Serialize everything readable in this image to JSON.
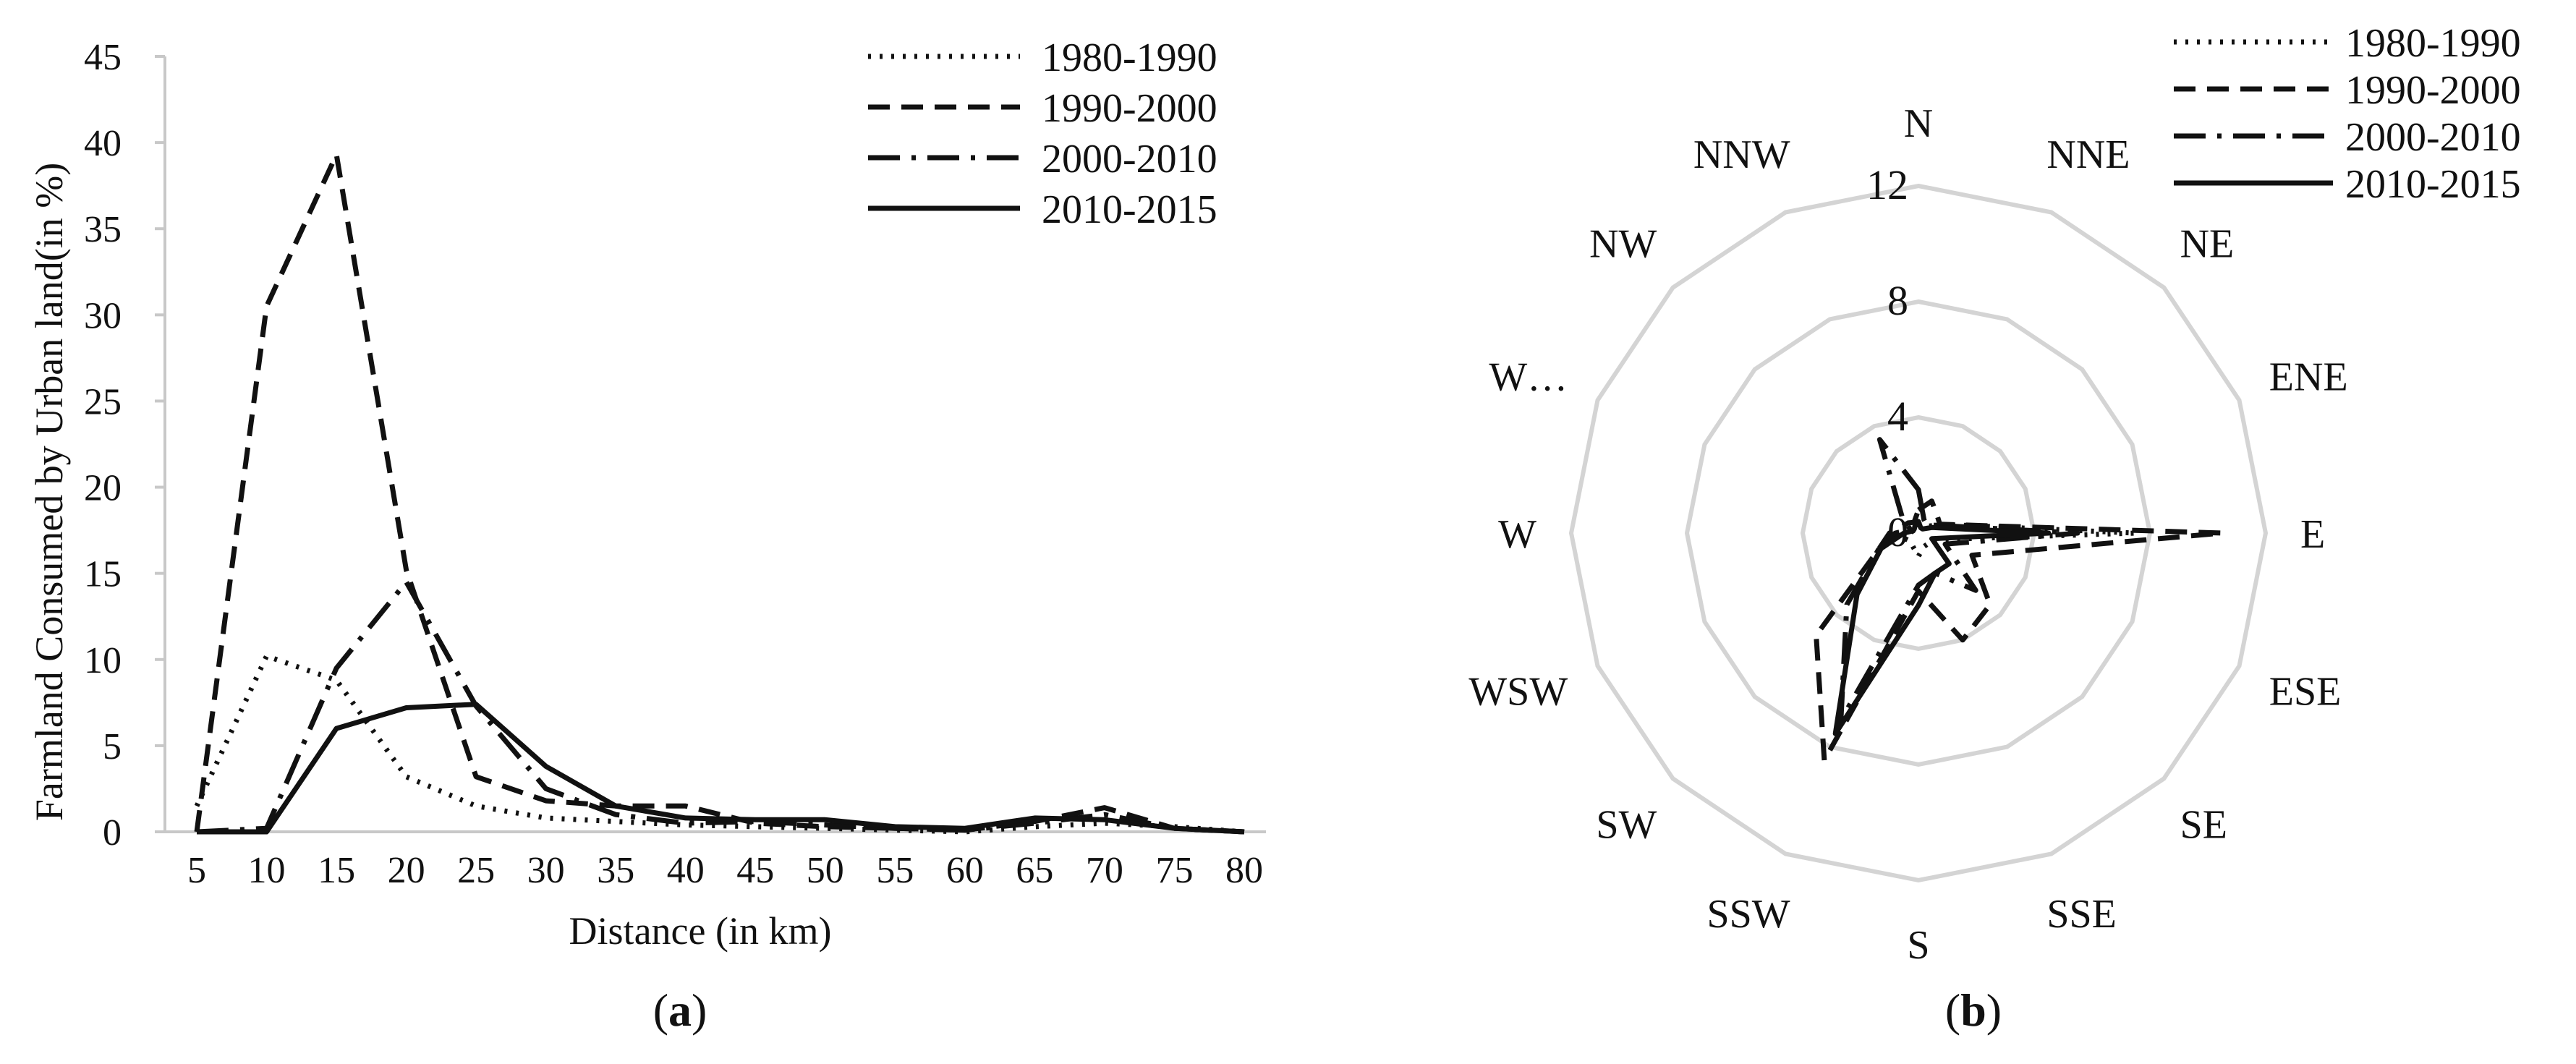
{
  "chart_data": [
    {
      "type": "line",
      "panel_label": "a",
      "xlabel": "Distance (in km)",
      "ylabel": "Farmland Consumed by Urban land(in %)",
      "x": [
        5,
        10,
        15,
        20,
        25,
        30,
        35,
        40,
        45,
        50,
        55,
        60,
        65,
        70,
        75,
        80
      ],
      "ylim": [
        0,
        45
      ],
      "yticks": [
        0,
        5,
        10,
        15,
        20,
        25,
        30,
        35,
        40,
        45
      ],
      "legend_position": "top-right",
      "series": [
        {
          "name": "1980-1990",
          "dash": "dot",
          "values": [
            1.5,
            10.2,
            8.8,
            3.2,
            1.5,
            0.8,
            0.6,
            0.4,
            0.3,
            0.2,
            0.1,
            0.0,
            0.3,
            0.5,
            0.3,
            0.0
          ]
        },
        {
          "name": "1990-2000",
          "dash": "dash",
          "values": [
            0.0,
            30.5,
            39.3,
            15.2,
            3.2,
            1.8,
            1.5,
            1.5,
            0.5,
            0.3,
            0.2,
            0.1,
            0.6,
            1.4,
            0.2,
            0.0
          ]
        },
        {
          "name": "2000-2010",
          "dash": "dashdot",
          "values": [
            0.0,
            0.2,
            9.5,
            14.5,
            7.3,
            2.5,
            1.0,
            0.5,
            0.6,
            0.4,
            0.2,
            0.1,
            0.5,
            1.0,
            0.2,
            0.0
          ]
        },
        {
          "name": "2010-2015",
          "dash": "solid",
          "values": [
            0.0,
            0.0,
            6.0,
            7.2,
            7.4,
            3.8,
            1.5,
            0.8,
            0.7,
            0.7,
            0.3,
            0.2,
            0.8,
            0.7,
            0.2,
            0.0
          ]
        }
      ]
    },
    {
      "type": "radar",
      "panel_label": "b",
      "categories": [
        "N",
        "NNE",
        "NE",
        "ENE",
        "E",
        "ESE",
        "SE",
        "SSE",
        "S",
        "SSW",
        "SW",
        "WSW",
        "W",
        "W…",
        "NW",
        "NNW"
      ],
      "rlim": [
        0,
        12
      ],
      "rticks": [
        0,
        4,
        8,
        12
      ],
      "legend_position": "top-right",
      "series": [
        {
          "name": "1980-1990",
          "dash": "dot",
          "values": [
            0.3,
            0.3,
            0.3,
            0.8,
            7.5,
            0.6,
            0.5,
            0.5,
            0.8,
            0.5,
            0.4,
            0.5,
            0.3,
            0.2,
            0.3,
            0.2
          ]
        },
        {
          "name": "1990-2000",
          "dash": "dash",
          "values": [
            0.8,
            1.2,
            0.9,
            0.8,
            10.5,
            2.0,
            3.5,
            4.0,
            2.0,
            8.5,
            5.0,
            1.5,
            1.0,
            0.6,
            0.5,
            0.4
          ]
        },
        {
          "name": "2000-2010",
          "dash": "dashdot",
          "values": [
            1.5,
            0.5,
            0.4,
            0.7,
            5.5,
            1.0,
            2.8,
            1.5,
            1.8,
            7.0,
            3.5,
            1.5,
            0.8,
            0.3,
            0.8,
            3.5
          ]
        },
        {
          "name": "2010-2015",
          "dash": "solid",
          "values": [
            0.4,
            0.2,
            0.2,
            0.5,
            4.5,
            0.5,
            1.5,
            1.5,
            2.5,
            7.5,
            3.0,
            1.4,
            0.5,
            0.2,
            0.2,
            0.3
          ]
        }
      ]
    }
  ]
}
